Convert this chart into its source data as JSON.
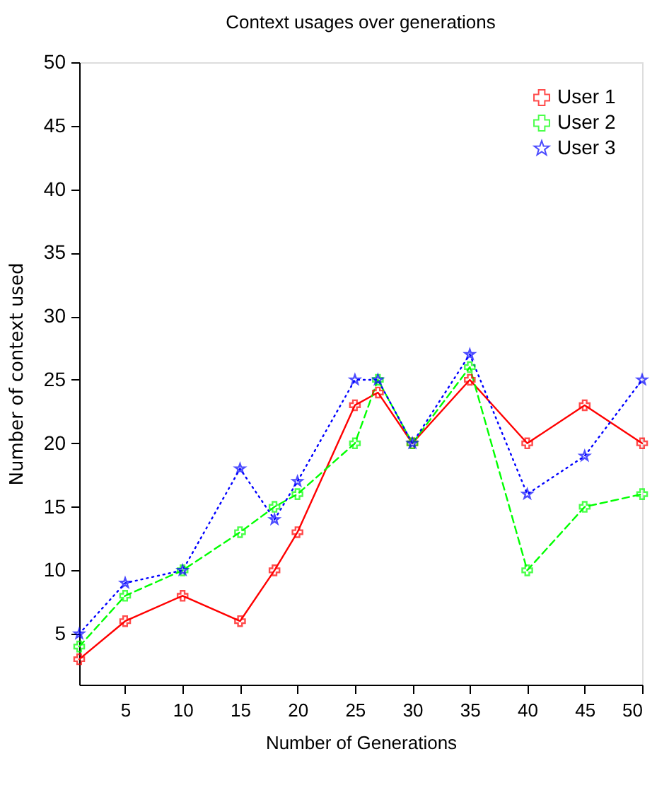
{
  "chart_data": {
    "type": "line",
    "title": "Context usages over generations",
    "xlabel": "Number of Generations",
    "ylabel": "Number of context used",
    "x": [
      1,
      5,
      10,
      15,
      18,
      20,
      25,
      27,
      30,
      35,
      40,
      45,
      50
    ],
    "series": [
      {
        "name": "User 1",
        "color": "#ff0000",
        "marker": "cross",
        "line_style": "solid",
        "values": [
          3,
          6,
          8,
          6,
          10,
          13,
          23,
          24,
          20,
          25,
          20,
          23,
          20
        ]
      },
      {
        "name": "User 2",
        "color": "#00ff00",
        "marker": "cross",
        "line_style": "dashed",
        "values": [
          4,
          8,
          10,
          13,
          15,
          16,
          20,
          25,
          20,
          26,
          10,
          15,
          16
        ]
      },
      {
        "name": "User 3",
        "color": "#0000ff",
        "marker": "star",
        "line_style": "dotted",
        "values": [
          5,
          9,
          10,
          18,
          14,
          17,
          25,
          25,
          20,
          27,
          16,
          19,
          25
        ]
      }
    ],
    "xlim": [
      1,
      50
    ],
    "xticks": [
      5,
      10,
      15,
      20,
      25,
      30,
      35,
      40,
      45,
      50
    ],
    "ylim": [
      1,
      50
    ],
    "yticks": [
      5,
      10,
      15,
      20,
      25,
      30,
      35,
      40,
      45,
      50
    ],
    "grid": false,
    "legend": "top right"
  }
}
